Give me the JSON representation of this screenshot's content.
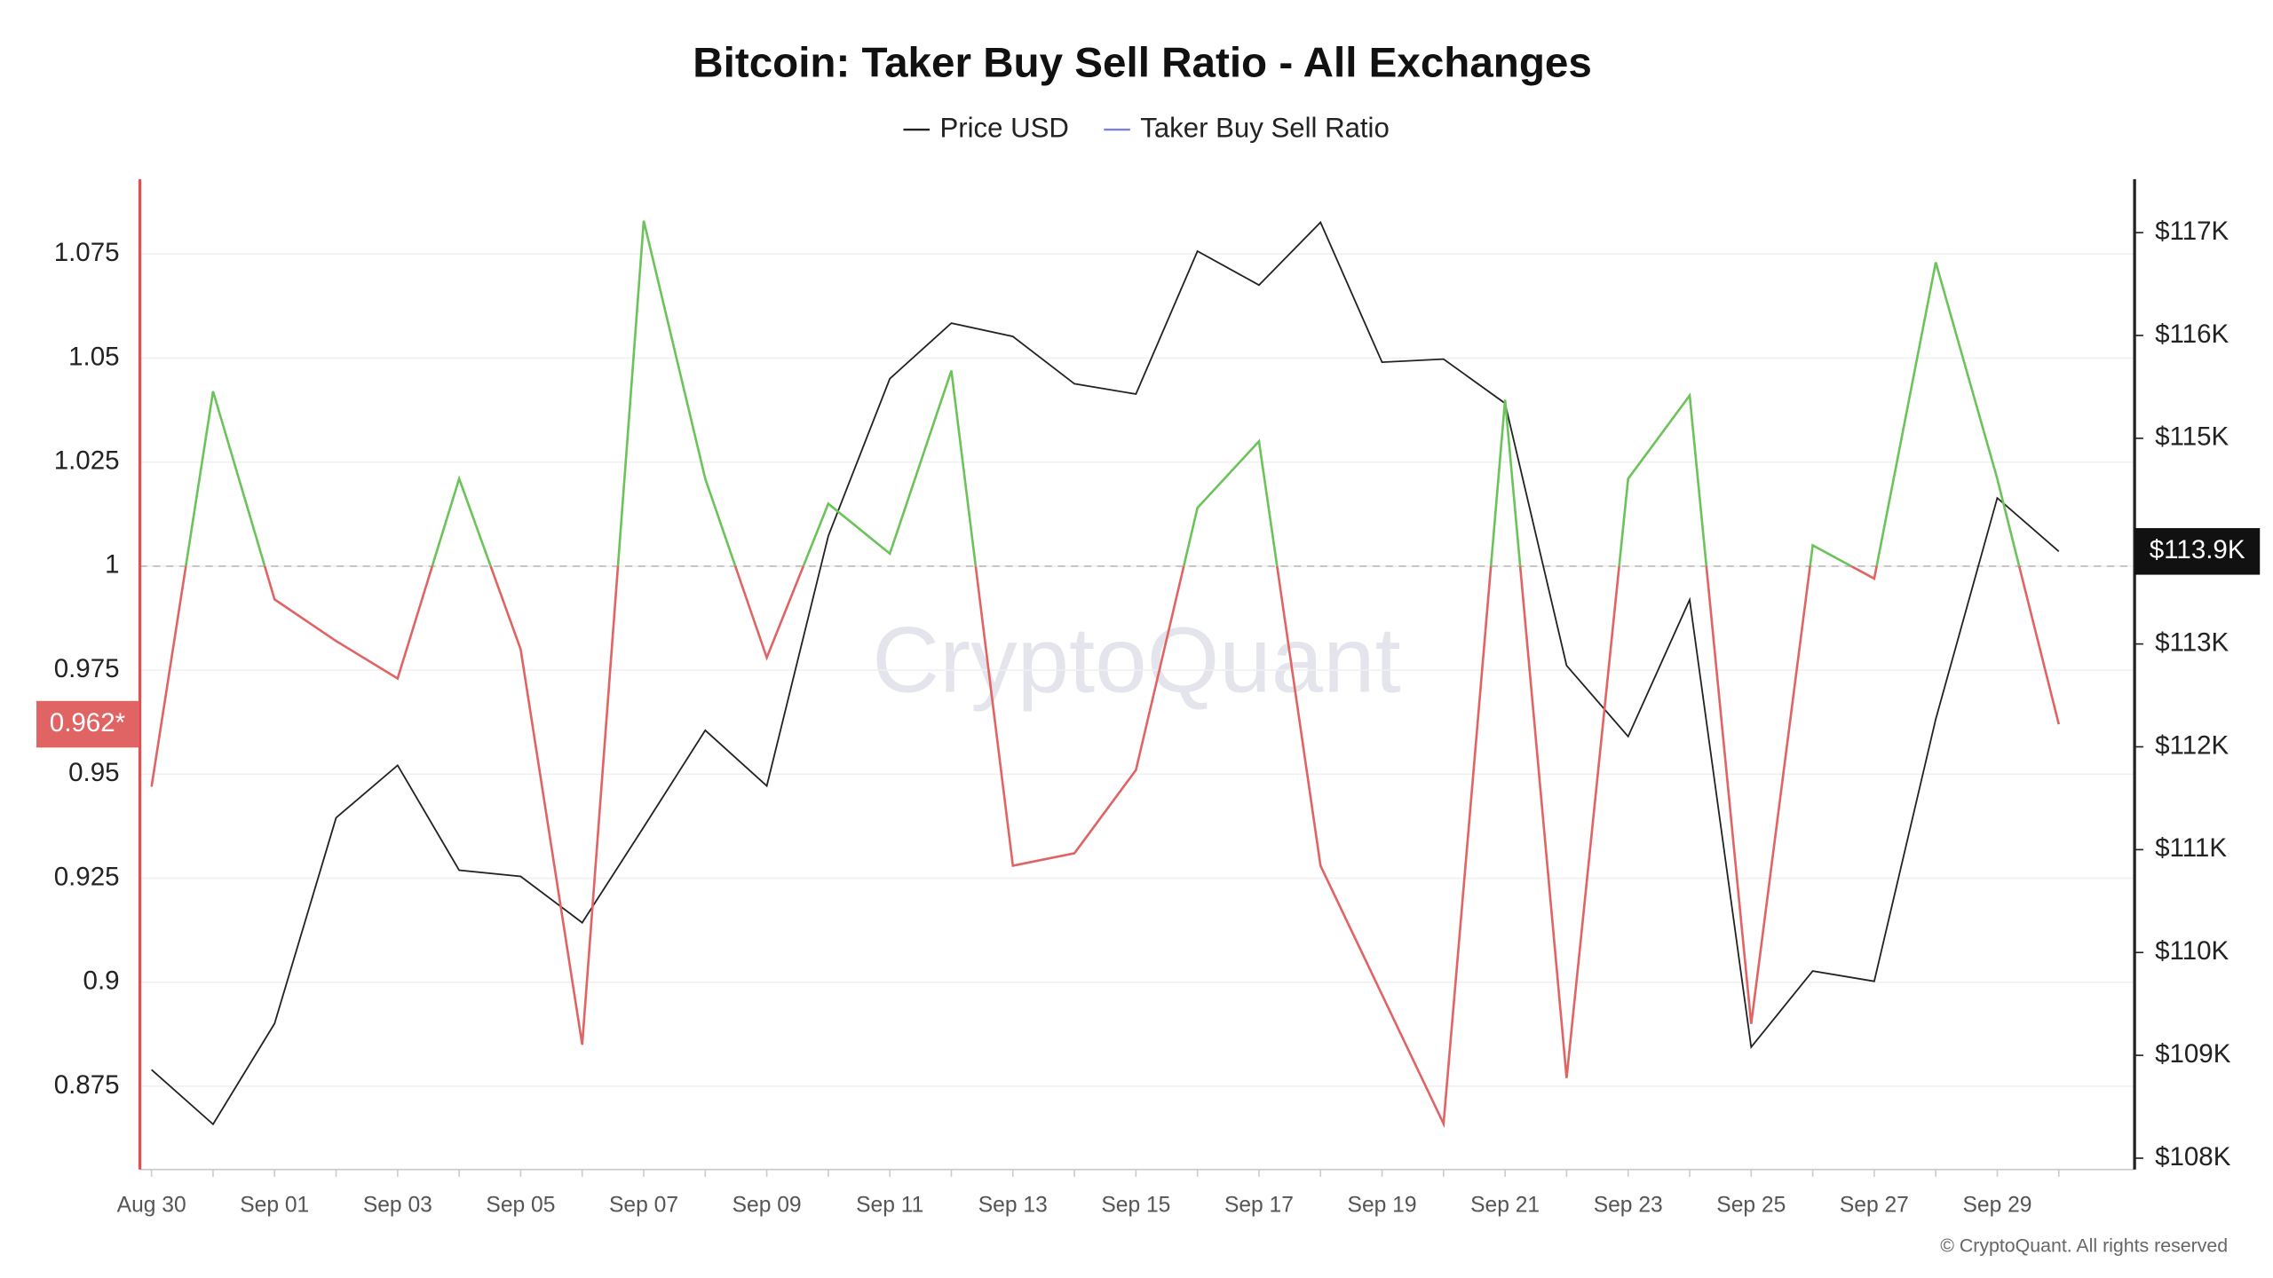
{
  "chart_data": {
    "type": "line",
    "title": "Bitcoin: Taker Buy Sell Ratio - All Exchanges",
    "watermark": "CryptoQuant",
    "copyright": "© CryptoQuant. All rights reserved",
    "categories": [
      "Aug 30",
      null,
      "Sep 01",
      null,
      "Sep 03",
      null,
      "Sep 05",
      null,
      "Sep 07",
      null,
      "Sep 09",
      null,
      "Sep 11",
      null,
      "Sep 13",
      null,
      "Sep 15",
      null,
      "Sep 17",
      null,
      "Sep 19",
      null,
      "Sep 21",
      null,
      "Sep 23",
      null,
      "Sep 25",
      null,
      "Sep 27",
      null,
      "Sep 29",
      null
    ],
    "ylim": [
      0.855,
      1.093
    ],
    "yticks": [
      0.875,
      0.9,
      0.925,
      0.95,
      0.975,
      1,
      1.025,
      1.05,
      1.075
    ],
    "y2lim": [
      107890,
      117520
    ],
    "y2ticks": [
      {
        "value": 108000,
        "label": "$108K"
      },
      {
        "value": 109000,
        "label": "$109K"
      },
      {
        "value": 110000,
        "label": "$110K"
      },
      {
        "value": 111000,
        "label": "$111K"
      },
      {
        "value": 112000,
        "label": "$112K"
      },
      {
        "value": 113000,
        "label": "$113K"
      },
      {
        "value": 115000,
        "label": "$115K"
      },
      {
        "value": 116000,
        "label": "$116K"
      },
      {
        "value": 117000,
        "label": "$117K"
      }
    ],
    "threshold": 1,
    "grid": true,
    "series": [
      {
        "name": "Price USD",
        "color": "#222222",
        "axis": "y2",
        "values": [
          108860,
          108330,
          109310,
          111310,
          111820,
          110800,
          110740,
          110290,
          111220,
          112160,
          111620,
          114050,
          115580,
          116120,
          115990,
          115530,
          115430,
          116820,
          116490,
          117100,
          115740,
          115770,
          115340,
          112790,
          112100,
          113430,
          109080,
          109820,
          109720,
          112270,
          114420,
          113900
        ],
        "value_labels": [
          null,
          null,
          null,
          null,
          null,
          null,
          null,
          null,
          null,
          null,
          null,
          null,
          null,
          null,
          null,
          null,
          null,
          null,
          null,
          null,
          null,
          null,
          null,
          null,
          null,
          null,
          null,
          null,
          null,
          null,
          null,
          "$113.9K"
        ]
      },
      {
        "name": "Taker Buy Sell Ratio",
        "color": "#7b7fe0",
        "above_color": "#6cc35a",
        "below_color": "#e06464",
        "values": [
          0.947,
          1.042,
          0.992,
          0.982,
          0.973,
          1.021,
          0.98,
          0.885,
          1.083,
          1.021,
          0.978,
          1.015,
          1.003,
          1.047,
          0.928,
          0.931,
          0.951,
          1.014,
          1.03,
          0.928,
          0.897,
          0.866,
          1.04,
          0.877,
          1.021,
          1.041,
          0.89,
          1.005,
          0.997,
          1.073,
          1.021,
          0.962
        ],
        "value_labels": [
          null,
          null,
          null,
          null,
          null,
          null,
          null,
          null,
          null,
          null,
          null,
          null,
          null,
          null,
          null,
          null,
          null,
          null,
          null,
          null,
          null,
          null,
          null,
          null,
          null,
          null,
          null,
          null,
          null,
          null,
          null,
          "0.962*"
        ]
      }
    ]
  }
}
